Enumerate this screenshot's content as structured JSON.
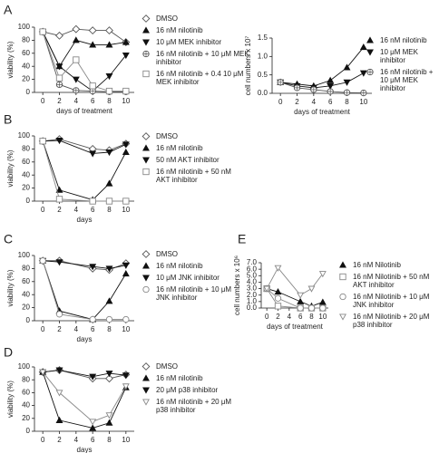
{
  "chart_data": [
    {
      "panel": "A",
      "type": "line",
      "x": [
        0,
        2,
        4,
        6,
        8,
        10
      ],
      "xlabel": "days of treatment",
      "ylabel": "viability (%)",
      "xlim": [
        -1,
        11
      ],
      "xticks": [
        0,
        2,
        4,
        6,
        8,
        10
      ],
      "ylim": [
        0,
        100
      ],
      "yticks": [
        0,
        20,
        40,
        60,
        80,
        100
      ],
      "series": [
        {
          "name": "DMSO",
          "marker": "diamond-open",
          "color": "#555555",
          "values": [
            93,
            87,
            97,
            95,
            95,
            77
          ]
        },
        {
          "name": "16 nM nilotinib",
          "marker": "triangle-up",
          "color": "#111111",
          "values": [
            93,
            40,
            80,
            73,
            73,
            77
          ]
        },
        {
          "name": "10 μM MEK inhibitor",
          "marker": "triangle-down",
          "color": "#111111",
          "values": [
            93,
            40,
            20,
            2,
            25,
            57
          ]
        },
        {
          "name": "16 nM nilotinib + 10 μM MEK inhibitor",
          "marker": "circle-cross",
          "color": "#555555",
          "values": [
            93,
            12,
            3,
            2,
            1,
            1
          ]
        },
        {
          "name": "16 nM nilotinib + 0.4 10 μM MEK inhibitor",
          "marker": "square-open",
          "color": "#888888",
          "values": [
            93,
            22,
            50,
            10,
            2,
            2
          ]
        }
      ]
    },
    {
      "panel": "",
      "type": "line",
      "x": [
        0,
        2,
        4,
        6,
        8,
        10
      ],
      "xlabel": "days of treatment",
      "ylabel": "cell numbers x 10⁷",
      "xlim": [
        -1,
        11
      ],
      "xticks": [
        0,
        2,
        4,
        6,
        8,
        10
      ],
      "ylim": [
        0,
        1.5
      ],
      "yticks": [
        {
          "value": 0,
          "label": "0.0"
        },
        {
          "value": 0.5,
          "label": "0.5"
        },
        {
          "value": 1,
          "label": "1.0"
        },
        {
          "value": 1.5,
          "label": "1.5"
        }
      ],
      "series": [
        {
          "name": "16 nM nilotinib",
          "marker": "triangle-up",
          "color": "#111111",
          "values": [
            0.3,
            0.25,
            0.2,
            0.35,
            0.7,
            1.25
          ]
        },
        {
          "name": "10 μM MEK inhibitor",
          "marker": "triangle-down",
          "color": "#111111",
          "values": [
            0.3,
            0.2,
            0.15,
            0.2,
            0.3,
            0.55
          ]
        },
        {
          "name": "16 nM nilotinib + 10 μM MEK inhibitor",
          "marker": "circle-cross",
          "color": "#555555",
          "values": [
            0.3,
            0.15,
            0.1,
            0.05,
            0.02,
            0.01
          ]
        }
      ]
    },
    {
      "panel": "B",
      "type": "line",
      "x": [
        0,
        2,
        6,
        8,
        10
      ],
      "xlabel": "days",
      "ylabel": "viability (%)",
      "xlim": [
        -1,
        11
      ],
      "xticks": [
        0,
        2,
        4,
        6,
        8,
        10
      ],
      "ylim": [
        0,
        100
      ],
      "yticks": [
        0,
        20,
        40,
        60,
        80,
        100
      ],
      "series": [
        {
          "name": "DMSO",
          "marker": "diamond-open",
          "color": "#555555",
          "values": [
            92,
            95,
            80,
            78,
            88
          ]
        },
        {
          "name": "16 nM nilotinib",
          "marker": "triangle-up",
          "color": "#111111",
          "values": [
            92,
            17,
            2,
            27,
            75
          ]
        },
        {
          "name": "50 nM AKT inhibitor",
          "marker": "triangle-down",
          "color": "#111111",
          "values": [
            92,
            93,
            73,
            75,
            87
          ]
        },
        {
          "name": "16 nM nilotinib + 50 nM AKT inhibitor",
          "marker": "square-open",
          "color": "#888888",
          "values": [
            92,
            3,
            0,
            0,
            0
          ]
        }
      ]
    },
    {
      "panel": "C",
      "type": "line",
      "x": [
        0,
        2,
        6,
        8,
        10
      ],
      "xlabel": "days",
      "ylabel": "viability (%)",
      "xlim": [
        -1,
        11
      ],
      "xticks": [
        0,
        2,
        4,
        6,
        8,
        10
      ],
      "ylim": [
        0,
        100
      ],
      "yticks": [
        0,
        20,
        40,
        60,
        80,
        100
      ],
      "series": [
        {
          "name": "DMSO",
          "marker": "diamond-open",
          "color": "#555555",
          "values": [
            92,
            92,
            80,
            78,
            88
          ]
        },
        {
          "name": "16 nM nilotinib",
          "marker": "triangle-up",
          "color": "#111111",
          "values": [
            92,
            15,
            2,
            30,
            72
          ]
        },
        {
          "name": "10 μM JNK inhibitor",
          "marker": "triangle-down",
          "color": "#111111",
          "values": [
            92,
            90,
            83,
            80,
            85
          ]
        },
        {
          "name": "16 nM nilotinib + 10 μM JNK inhibitor",
          "marker": "circle-open",
          "color": "#888888",
          "values": [
            92,
            10,
            2,
            2,
            2
          ]
        }
      ]
    },
    {
      "panel": "D",
      "type": "line",
      "x": [
        0,
        2,
        6,
        8,
        10
      ],
      "xlabel": "days",
      "ylabel": "viability (%)",
      "xlim": [
        -1,
        11
      ],
      "xticks": [
        0,
        2,
        4,
        6,
        8,
        10
      ],
      "ylim": [
        0,
        100
      ],
      "yticks": [
        0,
        20,
        40,
        60,
        80,
        100
      ],
      "series": [
        {
          "name": "DMSO",
          "marker": "diamond-open",
          "color": "#555555",
          "values": [
            92,
            95,
            82,
            82,
            88
          ]
        },
        {
          "name": "16 nM nilotinib",
          "marker": "triangle-up",
          "color": "#111111",
          "values": [
            92,
            17,
            5,
            13,
            68
          ]
        },
        {
          "name": "20 μM p38 inhibitor",
          "marker": "triangle-down",
          "color": "#111111",
          "values": [
            92,
            95,
            85,
            90,
            87
          ]
        },
        {
          "name": "16 nM nilotinib + 20 μM p38 inhibitor",
          "marker": "triangle-down-open",
          "color": "#888888",
          "values": [
            92,
            60,
            15,
            25,
            70
          ]
        }
      ]
    },
    {
      "panel": "E",
      "type": "line",
      "x": [
        0,
        2,
        6,
        8,
        10
      ],
      "xlabel": "days of treatment",
      "ylabel": "cell numbers x 10⁶",
      "xlim": [
        -1,
        11
      ],
      "xticks": [
        0,
        2,
        4,
        6,
        8,
        10
      ],
      "ylim": [
        0,
        7
      ],
      "yticks": [
        {
          "value": 0,
          "label": "0.0"
        },
        {
          "value": 1,
          "label": "1.0"
        },
        {
          "value": 2,
          "label": "2.0"
        },
        {
          "value": 3,
          "label": "3.0"
        },
        {
          "value": 4,
          "label": "4.0"
        },
        {
          "value": 5,
          "label": "5.0"
        },
        {
          "value": 6,
          "label": "6.0"
        },
        {
          "value": 7,
          "label": "7.0"
        }
      ],
      "series": [
        {
          "name": "16 nM Nilotinib",
          "marker": "triangle-up",
          "color": "#111111",
          "values": [
            3.0,
            2.5,
            1.0,
            0.3,
            0.9
          ]
        },
        {
          "name": "16 nM Nilotinib + 50 nM AKT inhibitor",
          "marker": "square-open",
          "color": "#888888",
          "values": [
            3.0,
            0.3,
            0.0,
            0.0,
            0.0
          ]
        },
        {
          "name": "16 nM Nilotinib + 10 μM JNK inhibitor",
          "marker": "circle-open",
          "color": "#888888",
          "values": [
            3.0,
            1.5,
            0.0,
            0.0,
            0.0
          ]
        },
        {
          "name": "16 nM Nilotinib + 20 μM p38 inhibitor",
          "marker": "triangle-down-open",
          "color": "#888888",
          "values": [
            3.0,
            6.2,
            2.0,
            3.0,
            5.3
          ]
        }
      ]
    }
  ]
}
